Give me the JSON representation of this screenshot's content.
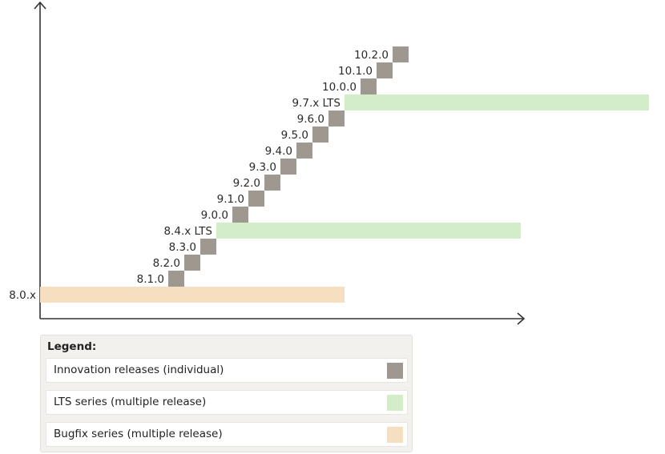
{
  "colors": {
    "innovation": "#9e9890",
    "lts": "#d4edc9",
    "bugfix": "#f5dfc0",
    "axis": "#333333"
  },
  "releases": [
    {
      "label": "8.0.x",
      "type": "bugfix"
    },
    {
      "label": "8.1.0",
      "type": "innovation"
    },
    {
      "label": "8.2.0",
      "type": "innovation"
    },
    {
      "label": "8.3.0",
      "type": "innovation"
    },
    {
      "label": "8.4.x LTS",
      "type": "lts"
    },
    {
      "label": "9.0.0",
      "type": "innovation"
    },
    {
      "label": "9.1.0",
      "type": "innovation"
    },
    {
      "label": "9.2.0",
      "type": "innovation"
    },
    {
      "label": "9.3.0",
      "type": "innovation"
    },
    {
      "label": "9.4.0",
      "type": "innovation"
    },
    {
      "label": "9.5.0",
      "type": "innovation"
    },
    {
      "label": "9.6.0",
      "type": "innovation"
    },
    {
      "label": "9.7.x LTS",
      "type": "lts"
    },
    {
      "label": "10.0.0",
      "type": "innovation"
    },
    {
      "label": "10.1.0",
      "type": "innovation"
    },
    {
      "label": "10.2.0",
      "type": "innovation"
    }
  ],
  "legend": {
    "title": "Legend:",
    "items": [
      {
        "label": "Innovation releases (individual)",
        "type": "innovation"
      },
      {
        "label": "LTS series (multiple release)",
        "type": "lts"
      },
      {
        "label": "Bugfix series (multiple release)",
        "type": "bugfix"
      }
    ]
  }
}
